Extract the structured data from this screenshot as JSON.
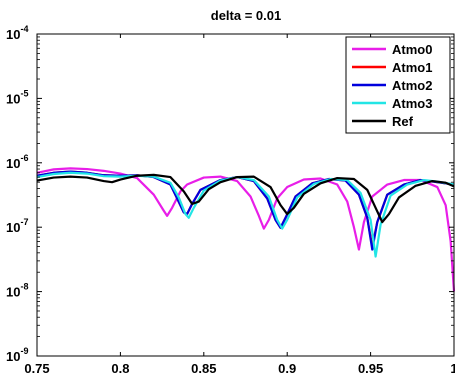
{
  "chart_data": {
    "type": "line",
    "title": "delta = 0.01",
    "xlabel": "",
    "ylabel": "",
    "xlim": [
      0.75,
      1.0
    ],
    "ylim": [
      1e-09,
      0.0001
    ],
    "yscale": "log",
    "grid": false,
    "legend_position": "top-right",
    "x_ticks": [
      0.75,
      0.8,
      0.85,
      0.9,
      0.95,
      1.0
    ],
    "x_tick_labels": [
      "0.75",
      "0.8",
      "0.85",
      "0.9",
      "0.95",
      "1"
    ],
    "y_ticks": [
      1e-09,
      1e-08,
      1e-07,
      1e-06,
      1e-05,
      0.0001
    ],
    "y_tick_labels": [
      {
        "base": "10",
        "exp": "-9"
      },
      {
        "base": "10",
        "exp": "-8"
      },
      {
        "base": "10",
        "exp": "-7"
      },
      {
        "base": "10",
        "exp": "-6"
      },
      {
        "base": "10",
        "exp": "-5"
      },
      {
        "base": "10",
        "exp": "-4"
      }
    ],
    "series": [
      {
        "name": "Atmo0",
        "color": "#e81ee8",
        "points": [
          [
            0.75,
            7e-07
          ],
          [
            0.76,
            7.9e-07
          ],
          [
            0.77,
            8.2e-07
          ],
          [
            0.78,
            8e-07
          ],
          [
            0.79,
            7.5e-07
          ],
          [
            0.8,
            6.8e-07
          ],
          [
            0.81,
            5.8e-07
          ],
          [
            0.82,
            3.2e-07
          ],
          [
            0.826,
            1.8e-07
          ],
          [
            0.828,
            1.5e-07
          ],
          [
            0.831,
            2e-07
          ],
          [
            0.836,
            3.6e-07
          ],
          [
            0.84,
            4.6e-07
          ],
          [
            0.85,
            5.9e-07
          ],
          [
            0.86,
            6.1e-07
          ],
          [
            0.87,
            5.2e-07
          ],
          [
            0.878,
            3e-07
          ],
          [
            0.883,
            1.5e-07
          ],
          [
            0.886,
            9.5e-08
          ],
          [
            0.889,
            1.3e-07
          ],
          [
            0.894,
            2.8e-07
          ],
          [
            0.9,
            4.2e-07
          ],
          [
            0.91,
            5.5e-07
          ],
          [
            0.92,
            5.7e-07
          ],
          [
            0.93,
            4.6e-07
          ],
          [
            0.936,
            2.5e-07
          ],
          [
            0.94,
            1e-07
          ],
          [
            0.943,
            4.5e-08
          ],
          [
            0.946,
            1.2e-07
          ],
          [
            0.951,
            3e-07
          ],
          [
            0.96,
            4.6e-07
          ],
          [
            0.97,
            5.4e-07
          ],
          [
            0.98,
            5.4e-07
          ],
          [
            0.99,
            4.2e-07
          ],
          [
            0.995,
            2.2e-07
          ],
          [
            0.998,
            6e-08
          ],
          [
            1.0,
            1e-08
          ]
        ]
      },
      {
        "name": "Atmo1",
        "color": "#ff0000",
        "points": [
          [
            0.75,
            6.3e-07
          ],
          [
            0.76,
            7e-07
          ],
          [
            0.77,
            7.3e-07
          ],
          [
            0.78,
            7e-07
          ],
          [
            0.79,
            6.4e-07
          ],
          [
            0.8,
            6.3e-07
          ],
          [
            0.81,
            6.4e-07
          ],
          [
            0.82,
            6e-07
          ],
          [
            0.83,
            4.6e-07
          ],
          [
            0.834,
            2.8e-07
          ],
          [
            0.838,
            1.7e-07
          ],
          [
            0.84,
            1.6e-07
          ],
          [
            0.843,
            2.3e-07
          ],
          [
            0.848,
            3.8e-07
          ],
          [
            0.86,
            5.4e-07
          ],
          [
            0.87,
            6e-07
          ],
          [
            0.88,
            5.2e-07
          ],
          [
            0.888,
            2.8e-07
          ],
          [
            0.893,
            1.3e-07
          ],
          [
            0.896,
            9.8e-08
          ],
          [
            0.899,
            1.4e-07
          ],
          [
            0.905,
            3e-07
          ],
          [
            0.915,
            4.8e-07
          ],
          [
            0.925,
            5.6e-07
          ],
          [
            0.935,
            5.3e-07
          ],
          [
            0.943,
            3.2e-07
          ],
          [
            0.948,
            1.4e-07
          ],
          [
            0.951,
            5e-08
          ],
          [
            0.954,
            1.2e-07
          ],
          [
            0.96,
            3.2e-07
          ],
          [
            0.97,
            4.6e-07
          ],
          [
            0.98,
            5.4e-07
          ],
          [
            0.99,
            5e-07
          ],
          [
            1.0,
            4.6e-07
          ]
        ]
      },
      {
        "name": "Atmo2",
        "color": "#0000dd",
        "points": [
          [
            0.75,
            6.3e-07
          ],
          [
            0.76,
            7e-07
          ],
          [
            0.77,
            7.3e-07
          ],
          [
            0.78,
            7e-07
          ],
          [
            0.79,
            6.4e-07
          ],
          [
            0.8,
            6.3e-07
          ],
          [
            0.81,
            6.4e-07
          ],
          [
            0.82,
            6e-07
          ],
          [
            0.83,
            4.6e-07
          ],
          [
            0.834,
            2.8e-07
          ],
          [
            0.838,
            1.7e-07
          ],
          [
            0.84,
            1.6e-07
          ],
          [
            0.843,
            2.3e-07
          ],
          [
            0.848,
            3.8e-07
          ],
          [
            0.86,
            5.4e-07
          ],
          [
            0.87,
            6e-07
          ],
          [
            0.88,
            5.2e-07
          ],
          [
            0.888,
            2.8e-07
          ],
          [
            0.893,
            1.3e-07
          ],
          [
            0.896,
            9.8e-08
          ],
          [
            0.899,
            1.4e-07
          ],
          [
            0.905,
            3e-07
          ],
          [
            0.915,
            4.8e-07
          ],
          [
            0.925,
            5.6e-07
          ],
          [
            0.935,
            5.3e-07
          ],
          [
            0.943,
            3.2e-07
          ],
          [
            0.948,
            1.4e-07
          ],
          [
            0.951,
            4.5e-08
          ],
          [
            0.954,
            1.2e-07
          ],
          [
            0.96,
            3.2e-07
          ],
          [
            0.97,
            4.6e-07
          ],
          [
            0.98,
            5.4e-07
          ],
          [
            0.99,
            5e-07
          ],
          [
            1.0,
            4.6e-07
          ]
        ]
      },
      {
        "name": "Atmo3",
        "color": "#22e5e5",
        "points": [
          [
            0.75,
            6e-07
          ],
          [
            0.76,
            6.7e-07
          ],
          [
            0.77,
            7e-07
          ],
          [
            0.78,
            6.8e-07
          ],
          [
            0.79,
            6.2e-07
          ],
          [
            0.8,
            6.1e-07
          ],
          [
            0.81,
            6.3e-07
          ],
          [
            0.82,
            6.1e-07
          ],
          [
            0.83,
            4.9e-07
          ],
          [
            0.835,
            2.9e-07
          ],
          [
            0.839,
            1.6e-07
          ],
          [
            0.841,
            1.4e-07
          ],
          [
            0.844,
            2e-07
          ],
          [
            0.85,
            3.7e-07
          ],
          [
            0.86,
            5.3e-07
          ],
          [
            0.87,
            6e-07
          ],
          [
            0.88,
            5.4e-07
          ],
          [
            0.889,
            3e-07
          ],
          [
            0.894,
            1.3e-07
          ],
          [
            0.897,
            9.5e-08
          ],
          [
            0.9,
            1.3e-07
          ],
          [
            0.906,
            2.9e-07
          ],
          [
            0.916,
            4.7e-07
          ],
          [
            0.926,
            5.6e-07
          ],
          [
            0.936,
            5.4e-07
          ],
          [
            0.944,
            3.4e-07
          ],
          [
            0.95,
            1.3e-07
          ],
          [
            0.953,
            3.5e-08
          ],
          [
            0.956,
            1.1e-07
          ],
          [
            0.962,
            3.1e-07
          ],
          [
            0.972,
            4.6e-07
          ],
          [
            0.982,
            5.4e-07
          ],
          [
            0.99,
            5.1e-07
          ],
          [
            1.0,
            4.6e-07
          ]
        ]
      },
      {
        "name": "Ref",
        "color": "#000000",
        "points": [
          [
            0.75,
            5.3e-07
          ],
          [
            0.76,
            5.9e-07
          ],
          [
            0.77,
            6.1e-07
          ],
          [
            0.78,
            5.9e-07
          ],
          [
            0.79,
            5.2e-07
          ],
          [
            0.795,
            5e-07
          ],
          [
            0.8,
            5.5e-07
          ],
          [
            0.81,
            6.3e-07
          ],
          [
            0.82,
            6.5e-07
          ],
          [
            0.83,
            6e-07
          ],
          [
            0.838,
            3.6e-07
          ],
          [
            0.843,
            2.3e-07
          ],
          [
            0.847,
            2.5e-07
          ],
          [
            0.853,
            3.9e-07
          ],
          [
            0.86,
            5e-07
          ],
          [
            0.87,
            6e-07
          ],
          [
            0.88,
            6.1e-07
          ],
          [
            0.89,
            4.2e-07
          ],
          [
            0.896,
            2.2e-07
          ],
          [
            0.9,
            1.6e-07
          ],
          [
            0.904,
            2e-07
          ],
          [
            0.91,
            3.3e-07
          ],
          [
            0.92,
            4.8e-07
          ],
          [
            0.93,
            5.8e-07
          ],
          [
            0.94,
            5.6e-07
          ],
          [
            0.948,
            3.8e-07
          ],
          [
            0.953,
            2e-07
          ],
          [
            0.957,
            1.2e-07
          ],
          [
            0.961,
            1.6e-07
          ],
          [
            0.967,
            2.9e-07
          ],
          [
            0.977,
            4.4e-07
          ],
          [
            0.987,
            5.2e-07
          ],
          [
            0.995,
            4.9e-07
          ],
          [
            1.0,
            4.3e-07
          ]
        ]
      }
    ]
  }
}
